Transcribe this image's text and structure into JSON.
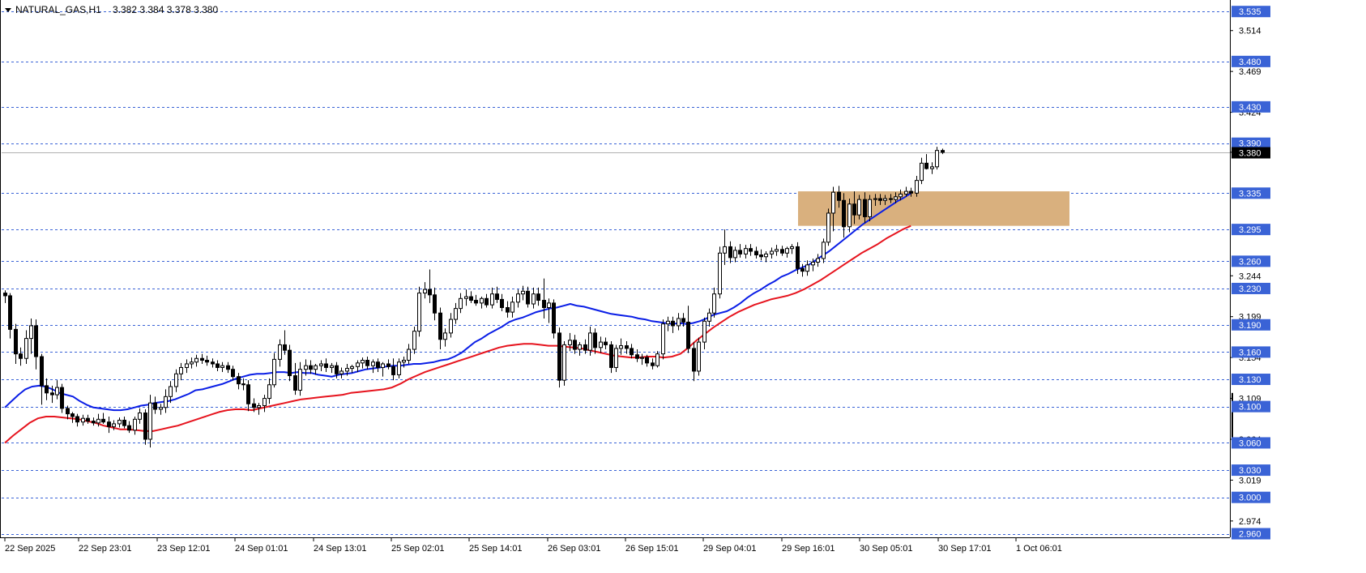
{
  "header": {
    "symbol": "NATURAL_GAS,H1",
    "ohlc": "3.382 3.384 3.378 3.380"
  },
  "colors": {
    "ema_fast": "#0a1ee6",
    "ema_slow": "#e6141e",
    "level_tag": "#3a63d6",
    "level_line": "#3a63d6",
    "zone": "#d9b07e",
    "current_tag": "#000000"
  },
  "chart_data": {
    "type": "candlestick",
    "symbol": "NATURAL_GAS",
    "timeframe": "H1",
    "ylim": [
      2.956,
      3.545
    ],
    "price_ticks": [
      "3.514",
      "3.469",
      "3.424",
      "3.380",
      "3.244",
      "3.199",
      "3.154",
      "3.109",
      "3.064",
      "3.019",
      "2.974"
    ],
    "time_ticks": [
      "22 Sep 2025",
      "22 Sep 23:01",
      "23 Sep 12:01",
      "24 Sep 01:01",
      "24 Sep 13:01",
      "25 Sep 02:01",
      "25 Sep 14:01",
      "26 Sep 03:01",
      "26 Sep 15:01",
      "29 Sep 04:01",
      "29 Sep 16:01",
      "30 Sep 05:01",
      "30 Sep 17:01",
      "1 Oct 06:01"
    ],
    "levels": [
      "3.535",
      "3.480",
      "3.430",
      "3.390",
      "3.335",
      "3.295",
      "3.260",
      "3.230",
      "3.190",
      "3.160",
      "3.130",
      "3.100",
      "3.060",
      "3.030",
      "3.000",
      "2.960"
    ],
    "current_price": "3.380",
    "zone": {
      "from": 3.299,
      "to": 3.337
    },
    "candles_ohlc": [
      [
        3.225,
        3.228,
        3.214,
        3.222
      ],
      [
        3.222,
        3.225,
        3.175,
        3.185
      ],
      [
        3.185,
        3.191,
        3.147,
        3.158
      ],
      [
        3.158,
        3.165,
        3.145,
        3.153
      ],
      [
        3.153,
        3.184,
        3.147,
        3.175
      ],
      [
        3.175,
        3.197,
        3.158,
        3.189
      ],
      [
        3.189,
        3.196,
        3.141,
        3.155
      ],
      [
        3.155,
        3.158,
        3.102,
        3.123
      ],
      [
        3.123,
        3.131,
        3.107,
        3.115
      ],
      [
        3.115,
        3.123,
        3.104,
        3.113
      ],
      [
        3.113,
        3.129,
        3.108,
        3.121
      ],
      [
        3.121,
        3.125,
        3.093,
        3.098
      ],
      [
        3.098,
        3.101,
        3.086,
        3.092
      ],
      [
        3.092,
        3.094,
        3.082,
        3.089
      ],
      [
        3.089,
        3.092,
        3.078,
        3.083
      ],
      [
        3.083,
        3.091,
        3.079,
        3.087
      ],
      [
        3.087,
        3.091,
        3.081,
        3.084
      ],
      [
        3.084,
        3.088,
        3.079,
        3.082
      ],
      [
        3.082,
        3.092,
        3.078,
        3.086
      ],
      [
        3.086,
        3.093,
        3.081,
        3.083
      ],
      [
        3.083,
        3.089,
        3.071,
        3.078
      ],
      [
        3.078,
        3.085,
        3.074,
        3.081
      ],
      [
        3.081,
        3.088,
        3.077,
        3.085
      ],
      [
        3.085,
        3.089,
        3.076,
        3.079
      ],
      [
        3.079,
        3.084,
        3.071,
        3.074
      ],
      [
        3.074,
        3.089,
        3.069,
        3.086
      ],
      [
        3.086,
        3.098,
        3.081,
        3.093
      ],
      [
        3.093,
        3.097,
        3.058,
        3.064
      ],
      [
        3.064,
        3.113,
        3.055,
        3.104
      ],
      [
        3.104,
        3.111,
        3.092,
        3.097
      ],
      [
        3.097,
        3.103,
        3.091,
        3.099
      ],
      [
        3.099,
        3.119,
        3.093,
        3.111
      ],
      [
        3.111,
        3.128,
        3.104,
        3.122
      ],
      [
        3.122,
        3.141,
        3.116,
        3.136
      ],
      [
        3.136,
        3.148,
        3.129,
        3.143
      ],
      [
        3.143,
        3.152,
        3.137,
        3.147
      ],
      [
        3.147,
        3.154,
        3.142,
        3.149
      ],
      [
        3.149,
        3.157,
        3.144,
        3.153
      ],
      [
        3.153,
        3.158,
        3.147,
        3.151
      ],
      [
        3.151,
        3.156,
        3.145,
        3.149
      ],
      [
        3.149,
        3.153,
        3.143,
        3.147
      ],
      [
        3.147,
        3.151,
        3.139,
        3.143
      ],
      [
        3.143,
        3.149,
        3.138,
        3.145
      ],
      [
        3.145,
        3.149,
        3.137,
        3.141
      ],
      [
        3.141,
        3.145,
        3.129,
        3.133
      ],
      [
        3.133,
        3.137,
        3.119,
        3.125
      ],
      [
        3.125,
        3.131,
        3.118,
        3.124
      ],
      [
        3.124,
        3.129,
        3.095,
        3.103
      ],
      [
        3.103,
        3.109,
        3.094,
        3.099
      ],
      [
        3.099,
        3.104,
        3.091,
        3.101
      ],
      [
        3.101,
        3.113,
        3.094,
        3.109
      ],
      [
        3.109,
        3.131,
        3.103,
        3.124
      ],
      [
        3.124,
        3.159,
        3.121,
        3.152
      ],
      [
        3.152,
        3.174,
        3.144,
        3.168
      ],
      [
        3.168,
        3.184,
        3.157,
        3.162
      ],
      [
        3.162,
        3.168,
        3.128,
        3.134
      ],
      [
        3.134,
        3.148,
        3.113,
        3.118
      ],
      [
        3.118,
        3.149,
        3.112,
        3.141
      ],
      [
        3.141,
        3.152,
        3.134,
        3.145
      ],
      [
        3.145,
        3.151,
        3.136,
        3.141
      ],
      [
        3.141,
        3.147,
        3.135,
        3.145
      ],
      [
        3.145,
        3.151,
        3.139,
        3.147
      ],
      [
        3.147,
        3.153,
        3.138,
        3.143
      ],
      [
        3.143,
        3.148,
        3.137,
        3.145
      ],
      [
        3.145,
        3.149,
        3.131,
        3.136
      ],
      [
        3.136,
        3.143,
        3.131,
        3.139
      ],
      [
        3.139,
        3.147,
        3.134,
        3.142
      ],
      [
        3.142,
        3.146,
        3.137,
        3.144
      ],
      [
        3.144,
        3.151,
        3.138,
        3.148
      ],
      [
        3.148,
        3.154,
        3.142,
        3.151
      ],
      [
        3.151,
        3.155,
        3.141,
        3.145
      ],
      [
        3.145,
        3.152,
        3.137,
        3.149
      ],
      [
        3.149,
        3.153,
        3.138,
        3.143
      ],
      [
        3.143,
        3.149,
        3.133,
        3.147
      ],
      [
        3.147,
        3.152,
        3.141,
        3.144
      ],
      [
        3.144,
        3.153,
        3.129,
        3.135
      ],
      [
        3.135,
        3.153,
        3.131,
        3.149
      ],
      [
        3.149,
        3.155,
        3.143,
        3.151
      ],
      [
        3.151,
        3.169,
        3.147,
        3.163
      ],
      [
        3.163,
        3.188,
        3.158,
        3.183
      ],
      [
        3.183,
        3.232,
        3.177,
        3.225
      ],
      [
        3.225,
        3.237,
        3.219,
        3.229
      ],
      [
        3.229,
        3.251,
        3.214,
        3.223
      ],
      [
        3.223,
        3.231,
        3.195,
        3.203
      ],
      [
        3.203,
        3.209,
        3.163,
        3.174
      ],
      [
        3.174,
        3.186,
        3.166,
        3.181
      ],
      [
        3.181,
        3.203,
        3.176,
        3.196
      ],
      [
        3.196,
        3.214,
        3.191,
        3.208
      ],
      [
        3.208,
        3.225,
        3.203,
        3.219
      ],
      [
        3.219,
        3.229,
        3.211,
        3.221
      ],
      [
        3.221,
        3.227,
        3.214,
        3.217
      ],
      [
        3.217,
        3.223,
        3.211,
        3.214
      ],
      [
        3.214,
        3.221,
        3.208,
        3.219
      ],
      [
        3.219,
        3.224,
        3.209,
        3.212
      ],
      [
        3.212,
        3.231,
        3.208,
        3.224
      ],
      [
        3.224,
        3.232,
        3.214,
        3.218
      ],
      [
        3.218,
        3.224,
        3.205,
        3.209
      ],
      [
        3.209,
        3.216,
        3.198,
        3.204
      ],
      [
        3.204,
        3.221,
        3.198,
        3.215
      ],
      [
        3.215,
        3.229,
        3.209,
        3.224
      ],
      [
        3.224,
        3.233,
        3.217,
        3.227
      ],
      [
        3.227,
        3.232,
        3.209,
        3.213
      ],
      [
        3.213,
        3.231,
        3.208,
        3.224
      ],
      [
        3.224,
        3.231,
        3.211,
        3.217
      ],
      [
        3.217,
        3.241,
        3.197,
        3.209
      ],
      [
        3.209,
        3.219,
        3.192,
        3.214
      ],
      [
        3.214,
        3.218,
        3.175,
        3.181
      ],
      [
        3.181,
        3.187,
        3.121,
        3.129
      ],
      [
        3.129,
        3.172,
        3.123,
        3.168
      ],
      [
        3.168,
        3.181,
        3.161,
        3.173
      ],
      [
        3.173,
        3.179,
        3.158,
        3.163
      ],
      [
        3.163,
        3.171,
        3.156,
        3.168
      ],
      [
        3.168,
        3.174,
        3.158,
        3.162
      ],
      [
        3.162,
        3.188,
        3.156,
        3.181
      ],
      [
        3.181,
        3.186,
        3.158,
        3.165
      ],
      [
        3.165,
        3.177,
        3.159,
        3.171
      ],
      [
        3.171,
        3.176,
        3.163,
        3.168
      ],
      [
        3.168,
        3.172,
        3.137,
        3.143
      ],
      [
        3.143,
        3.168,
        3.138,
        3.164
      ],
      [
        3.164,
        3.175,
        3.157,
        3.167
      ],
      [
        3.167,
        3.172,
        3.158,
        3.164
      ],
      [
        3.164,
        3.169,
        3.153,
        3.157
      ],
      [
        3.157,
        3.163,
        3.149,
        3.153
      ],
      [
        3.153,
        3.158,
        3.146,
        3.154
      ],
      [
        3.154,
        3.157,
        3.144,
        3.148
      ],
      [
        3.148,
        3.153,
        3.141,
        3.145
      ],
      [
        3.145,
        3.161,
        3.143,
        3.158
      ],
      [
        3.158,
        3.196,
        3.152,
        3.191
      ],
      [
        3.191,
        3.199,
        3.183,
        3.194
      ],
      [
        3.194,
        3.199,
        3.181,
        3.189
      ],
      [
        3.189,
        3.203,
        3.184,
        3.197
      ],
      [
        3.197,
        3.203,
        3.188,
        3.193
      ],
      [
        3.193,
        3.211,
        3.159,
        3.164
      ],
      [
        3.164,
        3.171,
        3.128,
        3.139
      ],
      [
        3.139,
        3.176,
        3.134,
        3.171
      ],
      [
        3.171,
        3.198,
        3.163,
        3.194
      ],
      [
        3.194,
        3.208,
        3.188,
        3.203
      ],
      [
        3.203,
        3.231,
        3.198,
        3.224
      ],
      [
        3.224,
        3.276,
        3.219,
        3.269
      ],
      [
        3.269,
        3.295,
        3.256,
        3.276
      ],
      [
        3.276,
        3.282,
        3.258,
        3.264
      ],
      [
        3.264,
        3.276,
        3.259,
        3.272
      ],
      [
        3.272,
        3.279,
        3.264,
        3.268
      ],
      [
        3.268,
        3.278,
        3.263,
        3.274
      ],
      [
        3.274,
        3.279,
        3.266,
        3.271
      ],
      [
        3.271,
        3.276,
        3.263,
        3.267
      ],
      [
        3.267,
        3.273,
        3.261,
        3.265
      ],
      [
        3.265,
        3.271,
        3.259,
        3.268
      ],
      [
        3.268,
        3.275,
        3.263,
        3.271
      ],
      [
        3.271,
        3.278,
        3.266,
        3.273
      ],
      [
        3.273,
        3.277,
        3.266,
        3.269
      ],
      [
        3.269,
        3.276,
        3.264,
        3.274
      ],
      [
        3.274,
        3.279,
        3.268,
        3.276
      ],
      [
        3.276,
        3.281,
        3.246,
        3.252
      ],
      [
        3.252,
        3.257,
        3.243,
        3.249
      ],
      [
        3.249,
        3.261,
        3.244,
        3.256
      ],
      [
        3.256,
        3.263,
        3.249,
        3.259
      ],
      [
        3.259,
        3.268,
        3.254,
        3.263
      ],
      [
        3.263,
        3.285,
        3.258,
        3.281
      ],
      [
        3.281,
        3.318,
        3.277,
        3.313
      ],
      [
        3.313,
        3.342,
        3.293,
        3.336
      ],
      [
        3.336,
        3.343,
        3.319,
        3.327
      ],
      [
        3.327,
        3.335,
        3.286,
        3.298
      ],
      [
        3.298,
        3.329,
        3.292,
        3.323
      ],
      [
        3.323,
        3.337,
        3.301,
        3.311
      ],
      [
        3.311,
        3.333,
        3.306,
        3.328
      ],
      [
        3.328,
        3.336,
        3.302,
        3.309
      ],
      [
        3.309,
        3.333,
        3.304,
        3.328
      ],
      [
        3.328,
        3.334,
        3.321,
        3.329
      ],
      [
        3.329,
        3.334,
        3.322,
        3.327
      ],
      [
        3.327,
        3.333,
        3.322,
        3.329
      ],
      [
        3.329,
        3.334,
        3.324,
        3.328
      ],
      [
        3.328,
        3.336,
        3.324,
        3.331
      ],
      [
        3.331,
        3.339,
        3.327,
        3.334
      ],
      [
        3.334,
        3.342,
        3.331,
        3.337
      ],
      [
        3.337,
        3.341,
        3.331,
        3.335
      ],
      [
        3.335,
        3.354,
        3.331,
        3.349
      ],
      [
        3.349,
        3.374,
        3.345,
        3.368
      ],
      [
        3.368,
        3.378,
        3.361,
        3.362
      ],
      [
        3.362,
        3.369,
        3.356,
        3.364
      ],
      [
        3.364,
        3.386,
        3.361,
        3.382
      ],
      [
        3.382,
        3.384,
        3.378,
        3.38
      ]
    ],
    "ema_fast": [
      3.099,
      3.106,
      3.113,
      3.119,
      3.122,
      3.123,
      3.122,
      3.119,
      3.115,
      3.113,
      3.111,
      3.106,
      3.102,
      3.099,
      3.098,
      3.097,
      3.096,
      3.096,
      3.097,
      3.099,
      3.101,
      3.102,
      3.104,
      3.105,
      3.106,
      3.108,
      3.111,
      3.114,
      3.118,
      3.119,
      3.121,
      3.123,
      3.125,
      3.128,
      3.131,
      3.133,
      3.135,
      3.136,
      3.136,
      3.137,
      3.138,
      3.138,
      3.137,
      3.138,
      3.137,
      3.137,
      3.135,
      3.134,
      3.133,
      3.135,
      3.136,
      3.137,
      3.139,
      3.141,
      3.142,
      3.143,
      3.144,
      3.145,
      3.145,
      3.146,
      3.147,
      3.147,
      3.148,
      3.149,
      3.151,
      3.152,
      3.155,
      3.159,
      3.165,
      3.171,
      3.175,
      3.18,
      3.184,
      3.188,
      3.193,
      3.196,
      3.198,
      3.201,
      3.204,
      3.206,
      3.208,
      3.209,
      3.211,
      3.213,
      3.211,
      3.21,
      3.208,
      3.206,
      3.204,
      3.202,
      3.201,
      3.2,
      3.199,
      3.197,
      3.196,
      3.194,
      3.193,
      3.192,
      3.191,
      3.192,
      3.191,
      3.192,
      3.194,
      3.197,
      3.201,
      3.203,
      3.205,
      3.209,
      3.214,
      3.22,
      3.225,
      3.229,
      3.234,
      3.238,
      3.243,
      3.246,
      3.25,
      3.253,
      3.256,
      3.261,
      3.266,
      3.271,
      3.277,
      3.283,
      3.289,
      3.295,
      3.301,
      3.306,
      3.311,
      3.316,
      3.321,
      3.326,
      3.33,
      3.335
    ],
    "ema_slow": [
      3.06,
      3.068,
      3.075,
      3.082,
      3.087,
      3.089,
      3.089,
      3.088,
      3.087,
      3.086,
      3.084,
      3.082,
      3.079,
      3.077,
      3.075,
      3.075,
      3.074,
      3.073,
      3.073,
      3.075,
      3.077,
      3.079,
      3.082,
      3.085,
      3.088,
      3.091,
      3.094,
      3.096,
      3.097,
      3.097,
      3.096,
      3.098,
      3.1,
      3.102,
      3.104,
      3.106,
      3.108,
      3.109,
      3.11,
      3.111,
      3.112,
      3.113,
      3.115,
      3.116,
      3.117,
      3.118,
      3.119,
      3.121,
      3.125,
      3.13,
      3.134,
      3.138,
      3.141,
      3.144,
      3.147,
      3.15,
      3.153,
      3.156,
      3.159,
      3.162,
      3.165,
      3.167,
      3.168,
      3.169,
      3.169,
      3.168,
      3.167,
      3.167,
      3.166,
      3.165,
      3.164,
      3.162,
      3.16,
      3.158,
      3.156,
      3.155,
      3.154,
      3.154,
      3.155,
      3.155,
      3.154,
      3.155,
      3.158,
      3.165,
      3.173,
      3.18,
      3.187,
      3.193,
      3.199,
      3.204,
      3.208,
      3.212,
      3.215,
      3.218,
      3.22,
      3.222,
      3.225,
      3.229,
      3.234,
      3.239,
      3.245,
      3.251,
      3.257,
      3.263,
      3.269,
      3.274,
      3.279,
      3.285,
      3.29,
      3.295,
      3.299
    ]
  }
}
